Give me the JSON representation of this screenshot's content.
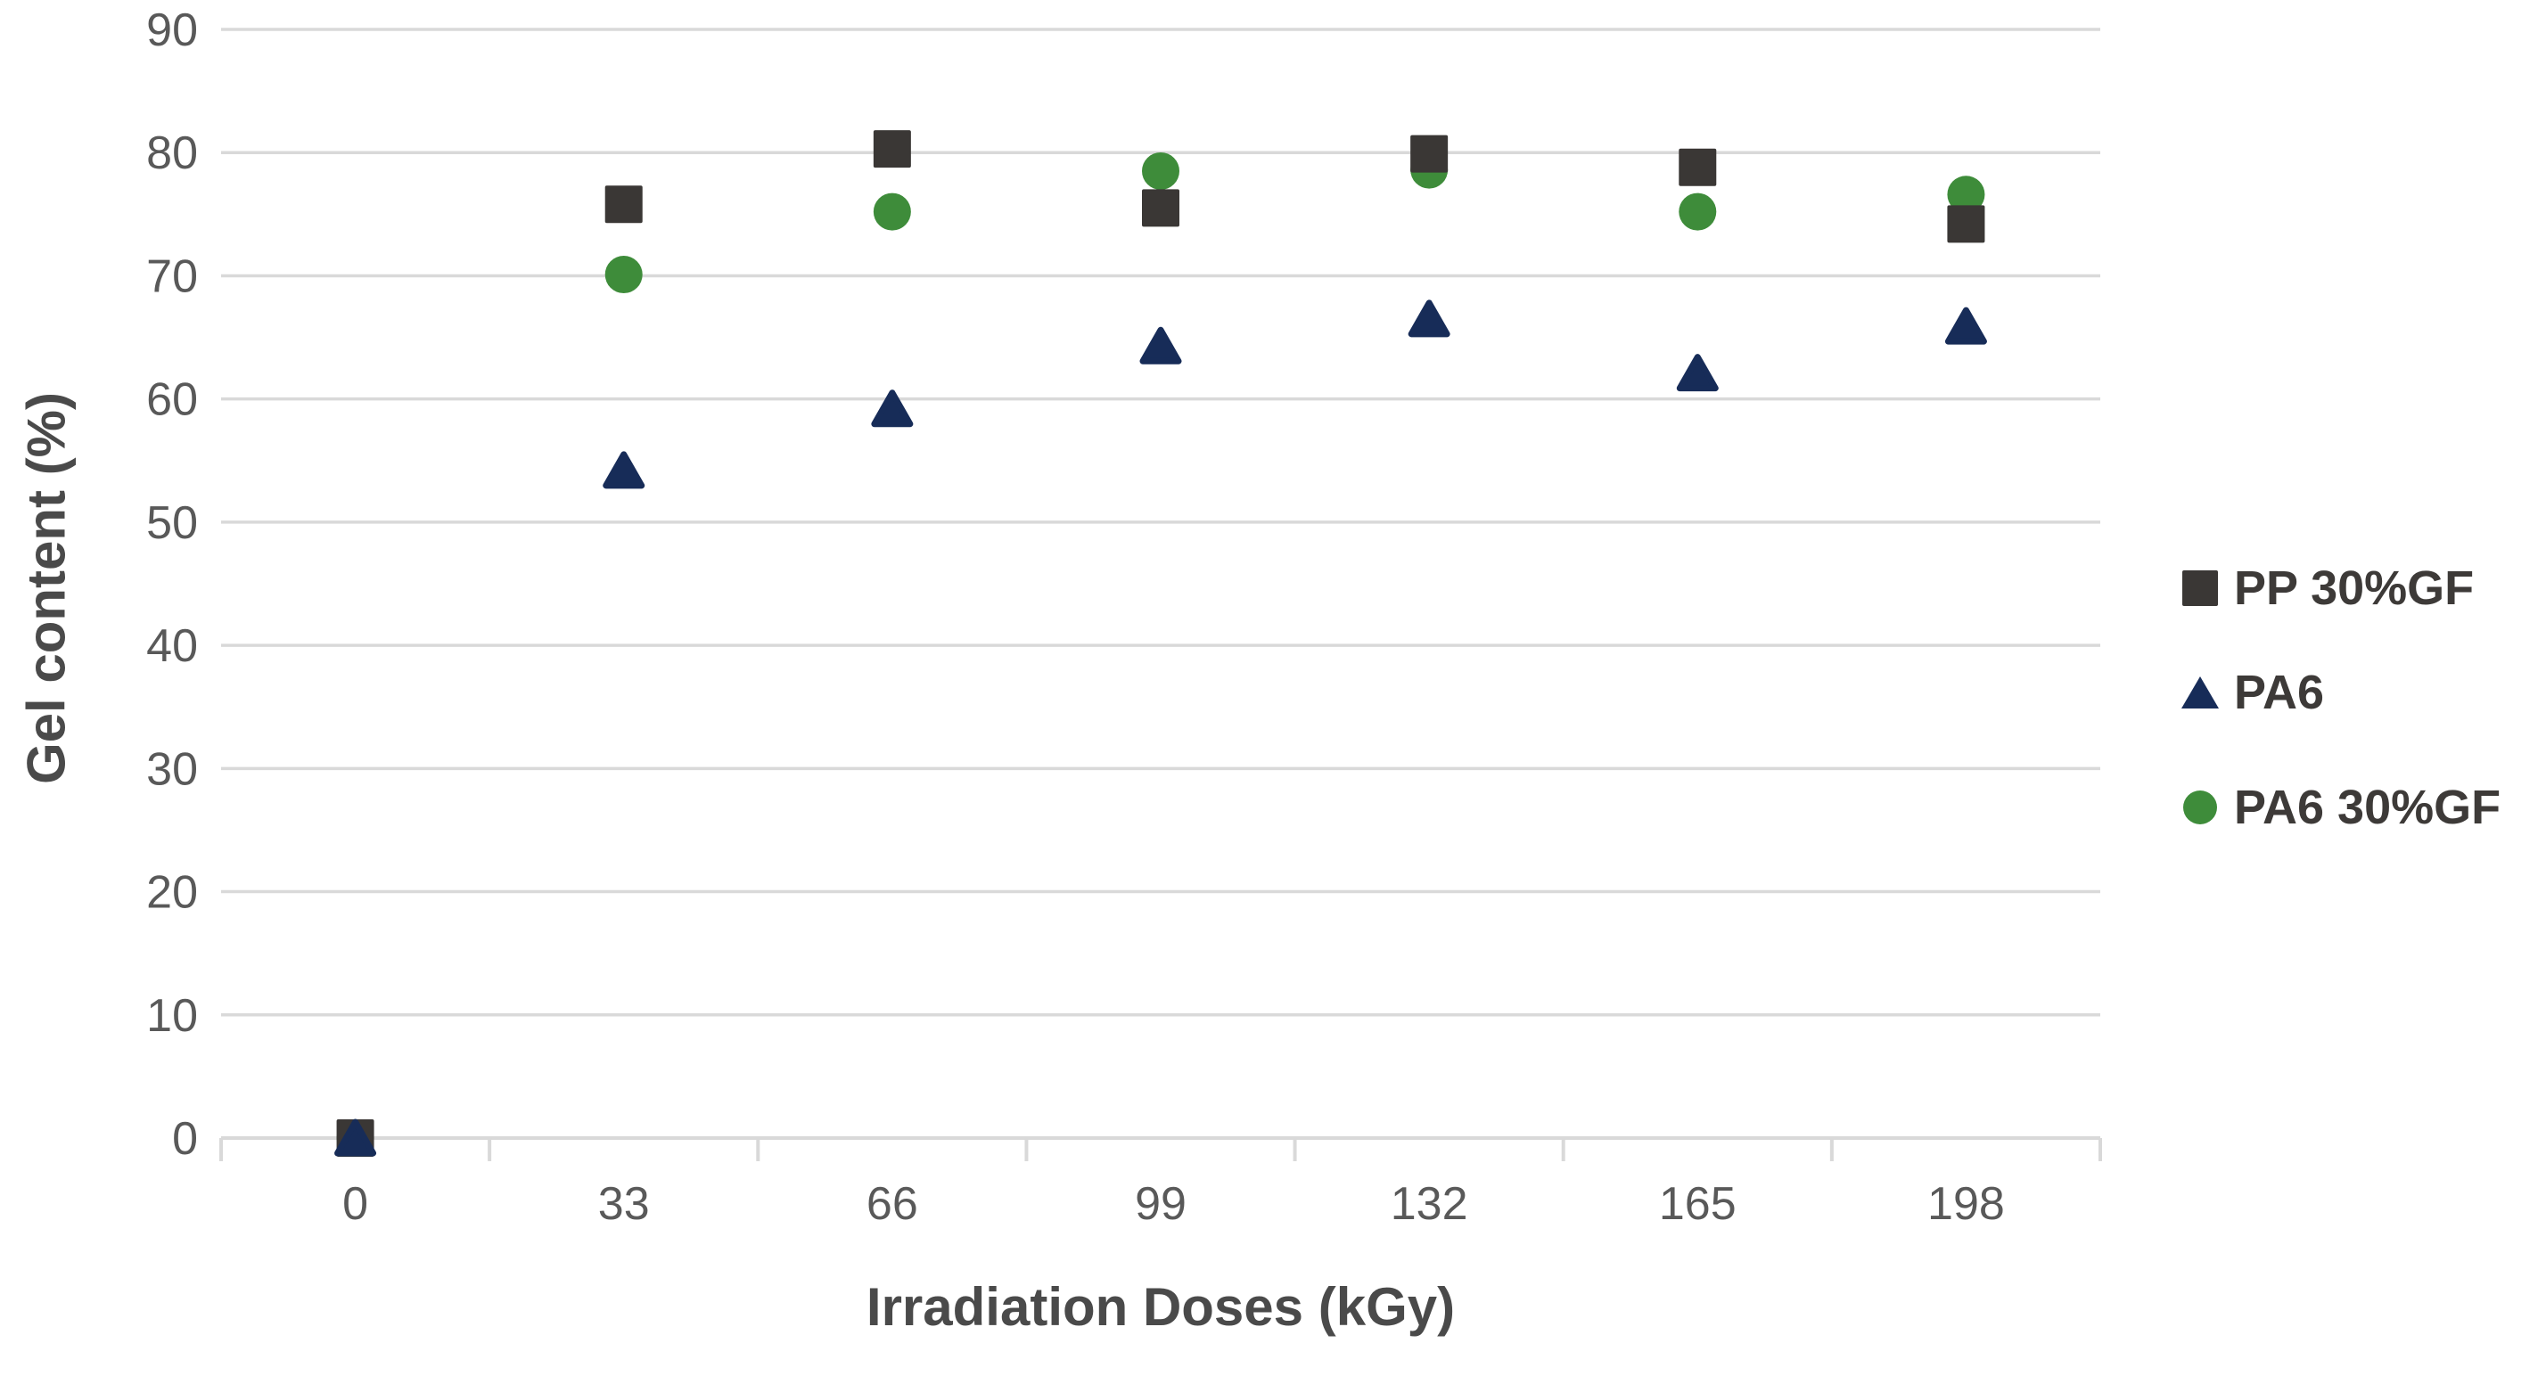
{
  "chart_data": {
    "type": "scatter",
    "title": "",
    "xlabel": "Irradiation Doses (kGy)",
    "ylabel": "Gel content (%)",
    "x_categories": [
      "0",
      "33",
      "66",
      "99",
      "132",
      "165",
      "198"
    ],
    "y_ticks": [
      "0",
      "10",
      "20",
      "30",
      "40",
      "50",
      "60",
      "70",
      "80",
      "90"
    ],
    "ylim": [
      0,
      90
    ],
    "grid": "horizontal-only",
    "legend_position": "right-middle",
    "draw_order": [
      2,
      0,
      1
    ],
    "series": [
      {
        "name": "PP 30%GF",
        "marker": "square",
        "color": "#3a3735",
        "values": [
          0,
          75.8,
          80.3,
          75.5,
          79.9,
          78.8,
          74.2
        ]
      },
      {
        "name": "PA6",
        "marker": "triangle",
        "color": "#172c58",
        "values": [
          0,
          54.2,
          59.2,
          64.3,
          66.5,
          62.1,
          65.9
        ]
      },
      {
        "name": "PA6 30%GF",
        "marker": "circle",
        "color": "#3e8c3a",
        "values": [
          0,
          70.1,
          75.2,
          78.5,
          78.6,
          75.2,
          76.6
        ]
      }
    ],
    "colors": {
      "background": "#ffffff",
      "gridline": "#d9d9d9",
      "axis_line": "#d9d9d9",
      "tick_label": "#595959",
      "axis_title": "#4a4a4a",
      "legend_text": "#3d3a38"
    }
  }
}
